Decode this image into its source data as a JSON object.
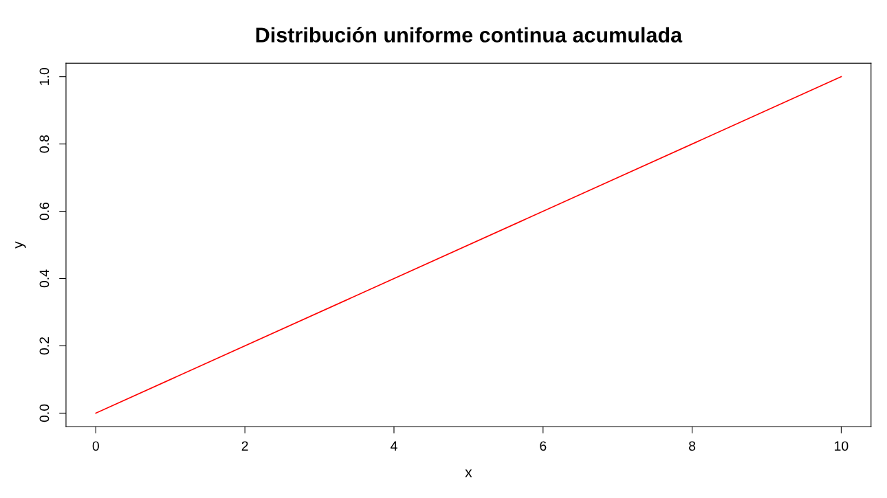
{
  "chart_data": {
    "type": "line",
    "title": "Distribución uniforme continua acumulada",
    "xlabel": "x",
    "ylabel": "y",
    "x": [
      0,
      10
    ],
    "series": [
      {
        "color": "#ff0000",
        "values": [
          0,
          1
        ]
      }
    ],
    "xlim": [
      -0.4,
      10.4
    ],
    "ylim": [
      -0.04,
      1.04
    ],
    "xticks": [
      0,
      2,
      4,
      6,
      8,
      10
    ],
    "yticks": [
      {
        "value": 0,
        "label": "0.0"
      },
      {
        "value": 0.2,
        "label": "0.2"
      },
      {
        "value": 0.4,
        "label": "0.4"
      },
      {
        "value": 0.6,
        "label": "0.6"
      },
      {
        "value": 0.8,
        "label": "0.8"
      },
      {
        "value": 1,
        "label": "1.0"
      }
    ],
    "grid": false,
    "legend": false,
    "marker": "none",
    "line_style": "solid"
  }
}
